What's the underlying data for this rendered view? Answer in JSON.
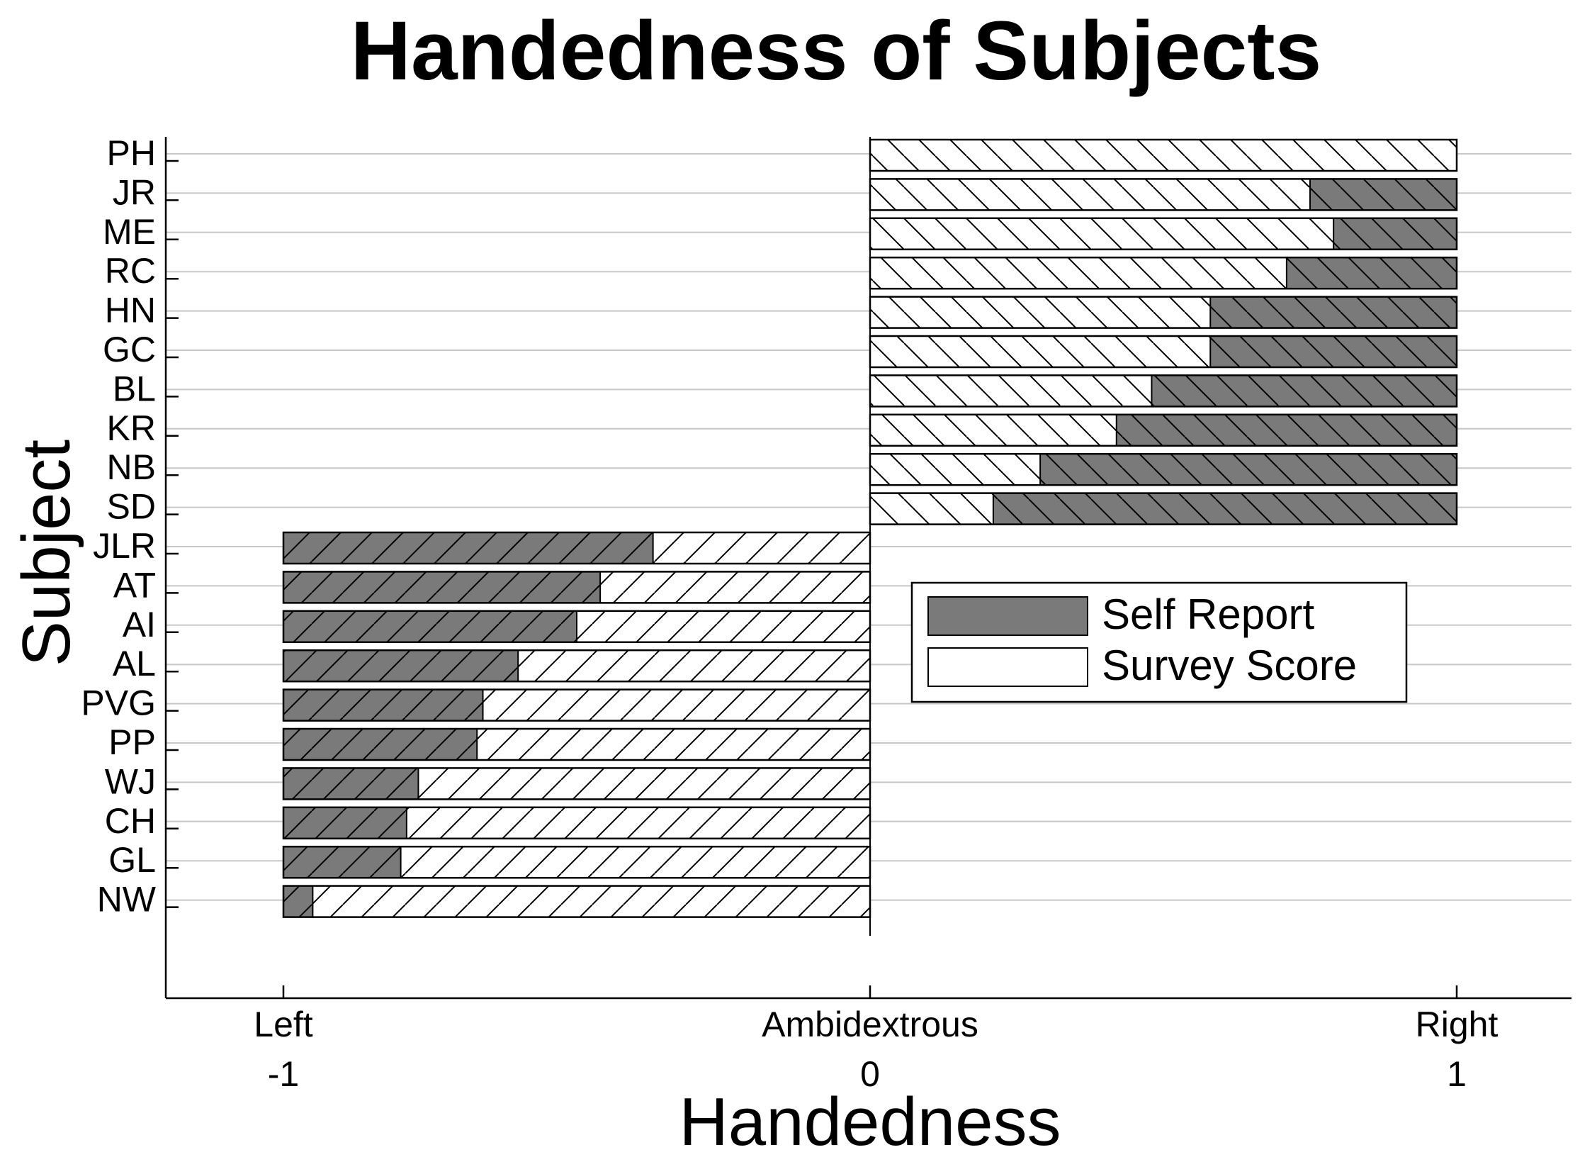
{
  "chart_data": {
    "type": "bar",
    "orientation": "horizontal",
    "stacked": true,
    "title": "Handedness of Subjects",
    "xlabel": "Handedness",
    "ylabel": "Subject",
    "xlim": [
      -1.2,
      1.2
    ],
    "ylim_order": "top-to-bottom",
    "grid": true,
    "legend_position": "right-center",
    "x_ticks": [
      {
        "value": -1,
        "label_top": "Left",
        "label_bottom": "-1"
      },
      {
        "value": 0,
        "label_top": "Ambidextrous",
        "label_bottom": "0"
      },
      {
        "value": 1,
        "label_top": "Right",
        "label_bottom": "1"
      }
    ],
    "categories": [
      "PH",
      "JR",
      "ME",
      "RC",
      "HN",
      "GC",
      "BL",
      "KR",
      "NB",
      "SD",
      "JLR",
      "AT",
      "AI",
      "AL",
      "PVG",
      "PP",
      "WJ",
      "CH",
      "GL",
      "NW"
    ],
    "series": [
      {
        "name": "Self Report",
        "color": "#7a7a7a",
        "values": [
          0,
          0.25,
          0.21,
          0.29,
          0.42,
          0.42,
          0.52,
          0.58,
          0.71,
          0.79,
          -0.63,
          -0.54,
          -0.5,
          -0.4,
          -0.34,
          -0.33,
          -0.23,
          -0.21,
          -0.2,
          -0.05
        ]
      },
      {
        "name": "Survey Score",
        "color": "#ffffff",
        "values": [
          1.0,
          0.75,
          0.79,
          0.71,
          0.58,
          0.58,
          0.48,
          0.42,
          0.29,
          0.21,
          -0.37,
          -0.46,
          -0.5,
          -0.6,
          -0.66,
          -0.67,
          -0.77,
          -0.79,
          -0.8,
          -0.95
        ]
      }
    ]
  }
}
